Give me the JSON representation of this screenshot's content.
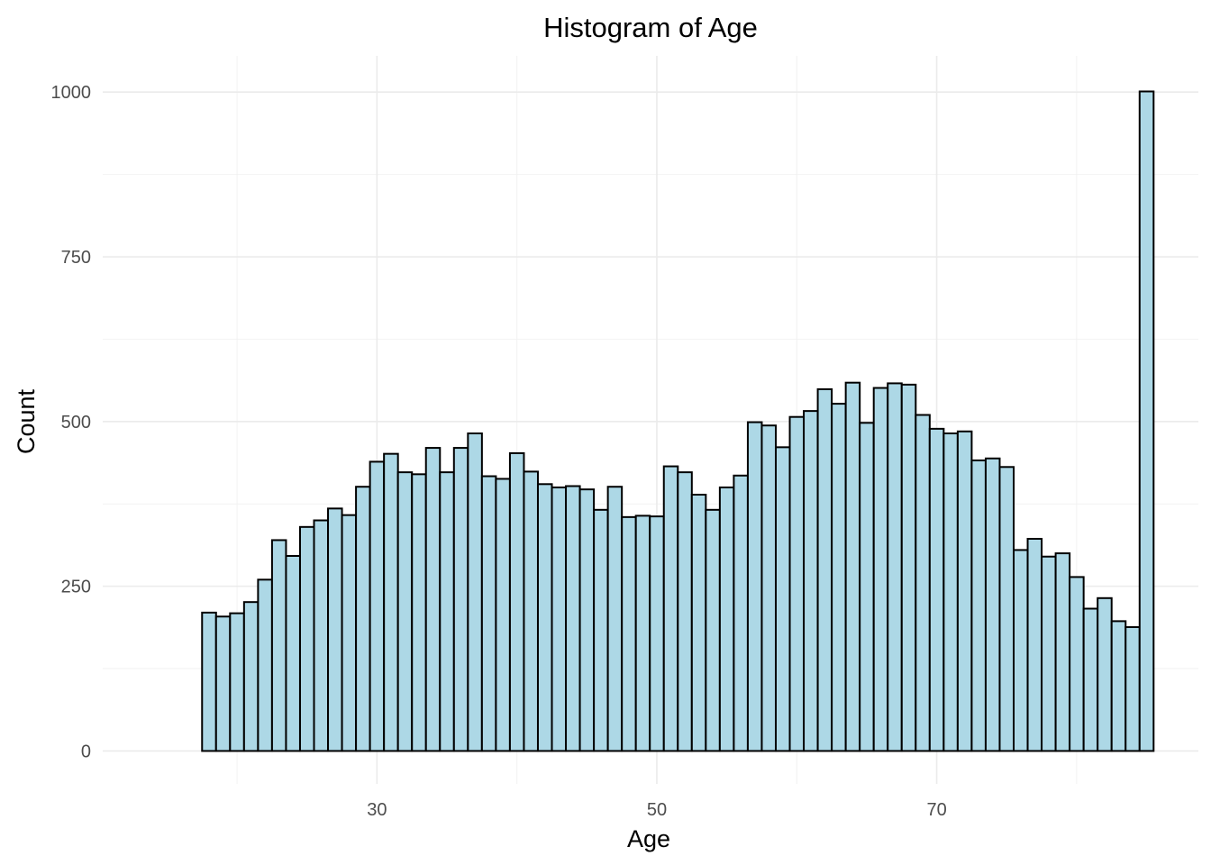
{
  "chart_data": {
    "type": "bar",
    "title": "Histogram of Age",
    "xlabel": "Age",
    "ylabel": "Count",
    "x_ticks": [
      30,
      50,
      70
    ],
    "x_minor_ticks": [
      20,
      40,
      60,
      80
    ],
    "y_ticks": [
      0,
      250,
      500,
      750,
      1000
    ],
    "y_minor_ticks": [
      125,
      375,
      625,
      875
    ],
    "xlim": [
      10.4,
      88.7
    ],
    "ylim": [
      -50,
      1055
    ],
    "grid": true,
    "legend": "none",
    "bin_width": 1,
    "bin_centers": [
      18,
      19,
      20,
      21,
      22,
      23,
      24,
      25,
      26,
      27,
      28,
      29,
      30,
      31,
      32,
      33,
      34,
      35,
      36,
      37,
      38,
      39,
      40,
      41,
      42,
      43,
      44,
      45,
      46,
      47,
      48,
      49,
      50,
      51,
      52,
      53,
      54,
      55,
      56,
      57,
      58,
      59,
      60,
      61,
      62,
      63,
      64,
      65,
      66,
      67,
      68,
      69,
      70,
      71,
      72,
      73,
      74,
      75,
      76,
      77,
      78,
      79,
      80,
      81,
      82,
      83,
      84,
      85
    ],
    "values": [
      210,
      204,
      209,
      226,
      260,
      320,
      296,
      340,
      350,
      368,
      358,
      401,
      439,
      451,
      423,
      420,
      460,
      423,
      460,
      482,
      417,
      413,
      452,
      424,
      405,
      400,
      402,
      397,
      366,
      401,
      355,
      357,
      356,
      432,
      423,
      389,
      366,
      400,
      418,
      499,
      494,
      461,
      507,
      516,
      549,
      527,
      559,
      498,
      551,
      558,
      556,
      510,
      489,
      482,
      485,
      441,
      444,
      431,
      305,
      322,
      295,
      300,
      264,
      216,
      232,
      197,
      188,
      1001
    ],
    "colors": {
      "bar_fill": "#add8e6",
      "bar_outline": "#000000",
      "grid": "#ebebeb",
      "tick_text": "#4d4d4d"
    }
  }
}
